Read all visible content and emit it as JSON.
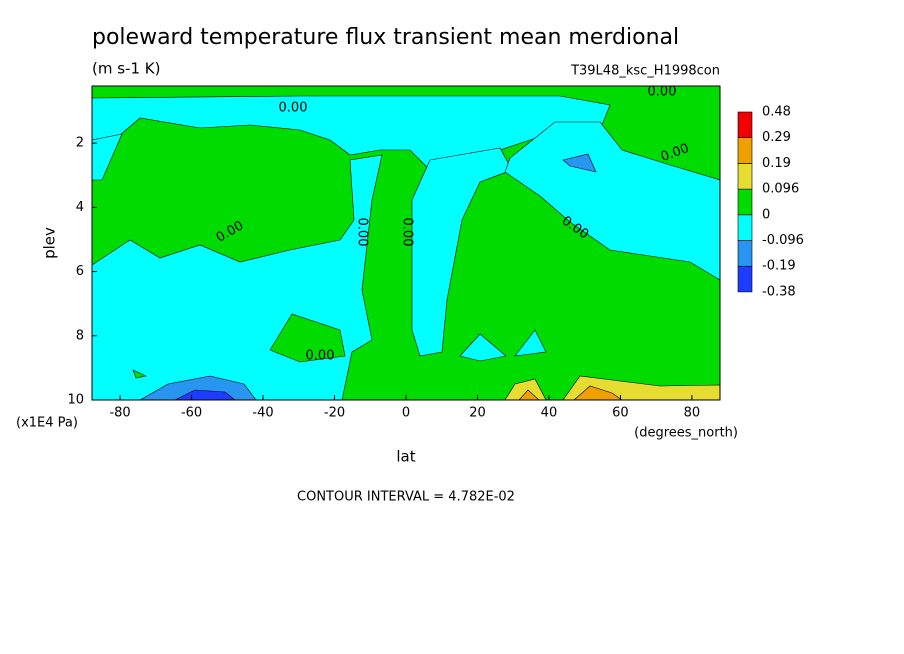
{
  "chart_data": {
    "type": "contour",
    "title": "poleward temperature flux transient mean merdional",
    "subtitle": "(m s-1 K)",
    "run_label": "T39L48_ksc_H1998con",
    "x_label": "lat",
    "x_unit": "(degrees_north)",
    "y_label": "plev",
    "y_unit": "(x1E4 Pa)",
    "note": "CONTOUR INTERVAL = 4.782E-02",
    "contour_label": "0.00",
    "xlim": [
      -87.86,
      87.86
    ],
    "xticks": [
      -80,
      -60,
      -40,
      -20,
      0,
      20,
      40,
      60,
      80
    ],
    "ylim": [
      10,
      0.22
    ],
    "yticks": [
      2,
      4,
      6,
      8,
      10
    ],
    "levels": [
      -0.38,
      -0.19,
      -0.096,
      0,
      0.096,
      0.19,
      0.29,
      0.48
    ],
    "colors": [
      "#1e3cff",
      "#2896f0",
      "#00ffff",
      "#00dc00",
      "#e6dc32",
      "#f0a000",
      "#f00000"
    ]
  }
}
